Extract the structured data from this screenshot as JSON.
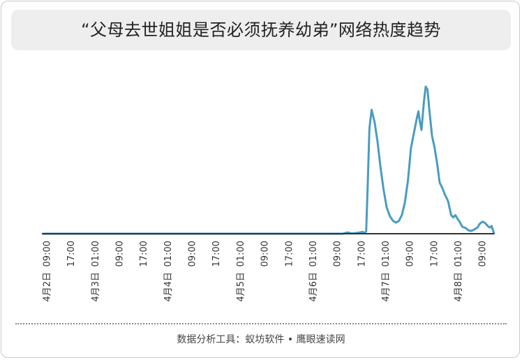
{
  "title": "“父母去世姐姐是否必须抚养幼弟”网络热度趋势",
  "footer": "数据分析工具：蚁坊软件 • 鹰眼速读网",
  "chart_data": {
    "type": "line",
    "title": "“父母去世姐姐是否必须抚养幼弟”网络热度趋势",
    "x_unit": "hours since 4月2日 09:00",
    "tick_labels": [
      "09:00",
      "17:00",
      "01:00",
      "09:00",
      "17:00",
      "01:00",
      "09:00",
      "17:00",
      "01:00",
      "09:00",
      "17:00",
      "01:00",
      "09:00",
      "17:00",
      "01:00",
      "09:00",
      "17:00",
      "01:00",
      "09:00"
    ],
    "tick_hours": [
      0,
      8,
      16,
      24,
      32,
      40,
      48,
      56,
      64,
      72,
      80,
      88,
      96,
      104,
      112,
      120,
      128,
      136,
      144
    ],
    "date_labels": [
      {
        "text": "4月2日",
        "hour": 0
      },
      {
        "text": "4月3日",
        "hour": 16
      },
      {
        "text": "4月4日",
        "hour": 40
      },
      {
        "text": "4月5日",
        "hour": 64
      },
      {
        "text": "4月6日",
        "hour": 88
      },
      {
        "text": "4月7日",
        "hour": 112
      },
      {
        "text": "4月8日",
        "hour": 136
      }
    ],
    "xlim": [
      -1.5,
      148
    ],
    "ylim": [
      0,
      100
    ],
    "series": [
      {
        "color": "#4a9cc0",
        "points": [
          [
            -1,
            0
          ],
          [
            80,
            0
          ],
          [
            98,
            0
          ],
          [
            99.5,
            0.8
          ],
          [
            101,
            0.2
          ],
          [
            103,
            0.6
          ],
          [
            104.5,
            1.2
          ],
          [
            105.2,
            0.6
          ],
          [
            105.7,
            1.5
          ],
          [
            106.2,
            30
          ],
          [
            106.8,
            68
          ],
          [
            107.5,
            80
          ],
          [
            108.5,
            72
          ],
          [
            109.5,
            59
          ],
          [
            110.5,
            42
          ],
          [
            111.5,
            28
          ],
          [
            112.5,
            17
          ],
          [
            113.5,
            11.5
          ],
          [
            114.5,
            8.5
          ],
          [
            115.5,
            7.2
          ],
          [
            116.5,
            8.2
          ],
          [
            117.5,
            12
          ],
          [
            118.5,
            20
          ],
          [
            119.5,
            34
          ],
          [
            120.5,
            55
          ],
          [
            121.5,
            65
          ],
          [
            122.5,
            75
          ],
          [
            123,
            79
          ],
          [
            123.5,
            72
          ],
          [
            124,
            67
          ],
          [
            124.8,
            85
          ],
          [
            125.4,
            95
          ],
          [
            126,
            93
          ],
          [
            126.6,
            80
          ],
          [
            127.5,
            63
          ],
          [
            128.3,
            56
          ],
          [
            129.2,
            45
          ],
          [
            130,
            33
          ],
          [
            130.8,
            30
          ],
          [
            131.8,
            25
          ],
          [
            132.8,
            21
          ],
          [
            133.8,
            12
          ],
          [
            134.5,
            10.5
          ],
          [
            135.2,
            12
          ],
          [
            135.8,
            10
          ],
          [
            136.5,
            8
          ],
          [
            137.5,
            4.5
          ],
          [
            138.5,
            3.8
          ],
          [
            139.5,
            2.2
          ],
          [
            140.5,
            1.8
          ],
          [
            141.5,
            2.8
          ],
          [
            142.5,
            4
          ],
          [
            143.3,
            6.5
          ],
          [
            144.2,
            7.8
          ],
          [
            145,
            7
          ],
          [
            146,
            4.8
          ],
          [
            146.6,
            4
          ],
          [
            147.2,
            5
          ],
          [
            147.8,
            1.2
          ],
          [
            148,
            0.2
          ]
        ]
      }
    ]
  }
}
